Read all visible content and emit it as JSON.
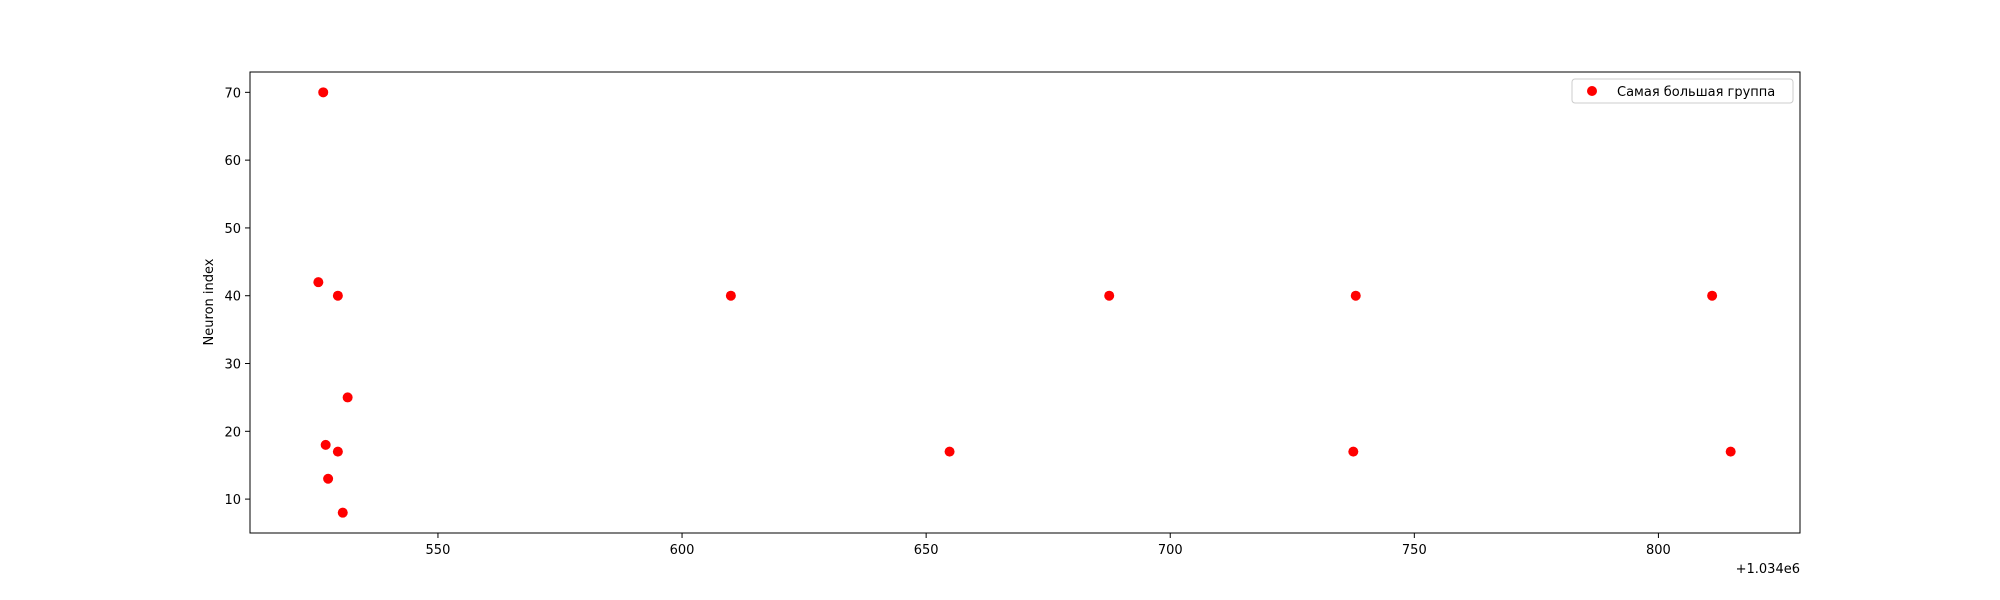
{
  "chart_data": {
    "type": "scatter",
    "title": "",
    "xlabel": "",
    "ylabel": "Neuron index",
    "x_offset_label": "+1.034e6",
    "x_offset": 1034000,
    "xlim": [
      511.5,
      829
    ],
    "ylim": [
      5,
      73
    ],
    "xticks": [
      550,
      600,
      650,
      700,
      750,
      800
    ],
    "yticks": [
      10,
      20,
      30,
      40,
      50,
      60,
      70
    ],
    "grid": false,
    "legend_position": "top-right",
    "series": [
      {
        "name": "Самая большая группа",
        "color": "#ff0000",
        "points": [
          {
            "x": 526.5,
            "y": 70
          },
          {
            "x": 525.5,
            "y": 42
          },
          {
            "x": 529.5,
            "y": 40
          },
          {
            "x": 531.5,
            "y": 25
          },
          {
            "x": 527.0,
            "y": 18
          },
          {
            "x": 529.5,
            "y": 17
          },
          {
            "x": 527.5,
            "y": 13
          },
          {
            "x": 530.5,
            "y": 8
          },
          {
            "x": 610.0,
            "y": 40
          },
          {
            "x": 654.8,
            "y": 17
          },
          {
            "x": 687.5,
            "y": 40
          },
          {
            "x": 737.5,
            "y": 17
          },
          {
            "x": 738.0,
            "y": 40
          },
          {
            "x": 811.0,
            "y": 40
          },
          {
            "x": 814.8,
            "y": 17
          }
        ]
      }
    ]
  }
}
